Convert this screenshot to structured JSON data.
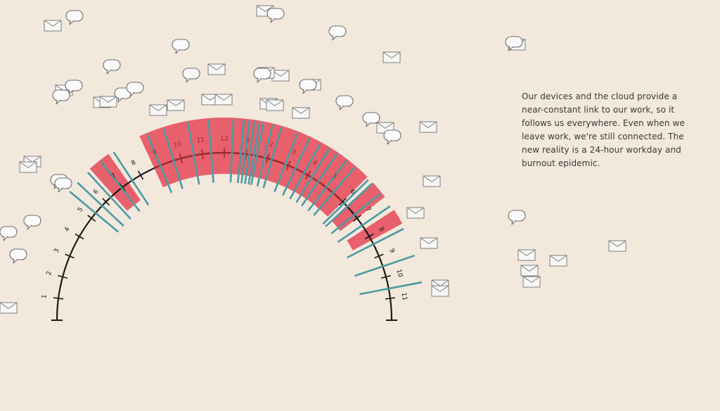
{
  "caption": "Our devices and the cloud provide a near-constant link to our work, so it follows us everywhere. Even when we leave work, we're still connected. The new reality is a 24-hour workday and burnout epidemic.",
  "colors": {
    "background": "#f3e8dc",
    "work_band": "#e8606b",
    "connection_line": "#4a9ba3",
    "arc": "#1c1a18",
    "arc_in_band": "#9e2a30"
  },
  "clock": {
    "hour_labels": [
      "1",
      "2",
      "3",
      "4",
      "5",
      "6",
      "7",
      "8",
      "9",
      "10",
      "11",
      "12",
      "1",
      "2",
      "3",
      "4",
      "5",
      "6",
      "7",
      "8",
      "9",
      "10",
      "11"
    ],
    "work_blocks_hours": [
      [
        6.45,
        7.35
      ],
      [
        8.7,
        18.0
      ],
      [
        18.3,
        19.0
      ],
      [
        19.6,
        20.2
      ]
    ],
    "connection_times_hours": [
      5.3,
      5.75,
      6.3,
      6.95,
      7.55,
      9.0,
      9.65,
      10.6,
      11.4,
      12.35,
      12.75,
      12.95,
      13.15,
      13.35,
      13.5,
      13.85,
      14.2,
      14.85,
      15.35,
      15.8,
      16.2,
      16.55,
      17.0,
      17.4,
      18.1,
      18.3,
      18.8,
      19.4,
      20.4,
      21.5,
      22.55
    ]
  },
  "icons": {
    "chat": "speech-bubble-icon",
    "mail": "envelope-icon"
  }
}
